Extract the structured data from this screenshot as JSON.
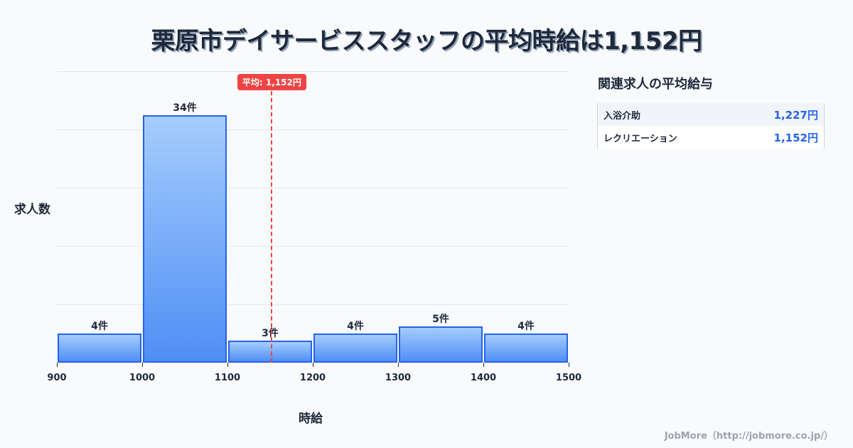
{
  "title": "栗原市デイサービススタッフの平均時給は1,152円",
  "chart_data": {
    "type": "bar",
    "title": "栗原市デイサービススタッフの平均時給は1,152円",
    "xlabel": "時給",
    "ylabel": "求人数",
    "categories": [
      "900-1000",
      "1000-1100",
      "1100-1200",
      "1200-1300",
      "1300-1400",
      "1400-1500"
    ],
    "bin_edges": [
      900,
      1000,
      1100,
      1200,
      1300,
      1400,
      1500
    ],
    "values": [
      4,
      34,
      3,
      4,
      5,
      4
    ],
    "value_labels": [
      "4件",
      "34件",
      "3件",
      "4件",
      "5件",
      "4件"
    ],
    "x_ticks": [
      "900",
      "1000",
      "1100",
      "1200",
      "1300",
      "1400",
      "1500"
    ],
    "xlim": [
      900,
      1500
    ],
    "ylim": [
      0,
      40
    ],
    "grid": true,
    "annotations": [
      {
        "type": "vline",
        "x": 1152,
        "label": "平均: 1,152円",
        "color": "#ef4444",
        "style": "dashed"
      }
    ],
    "bar_color": "#60a5fa",
    "bar_border_color": "#2563eb"
  },
  "average": {
    "label": "平均: 1,152円",
    "value": 1152
  },
  "side_panel": {
    "title": "関連求人の平均給与",
    "rows": [
      {
        "name": "入浴介助",
        "value": "1,227円"
      },
      {
        "name": "レクリエーション",
        "value": "1,152円"
      }
    ]
  },
  "footer": "JobMore（http://jobmore.co.jp/）",
  "colors": {
    "accent": "#2563eb",
    "average_line": "#ef4444",
    "text": "#1e293b",
    "background": "#f8fafc"
  }
}
